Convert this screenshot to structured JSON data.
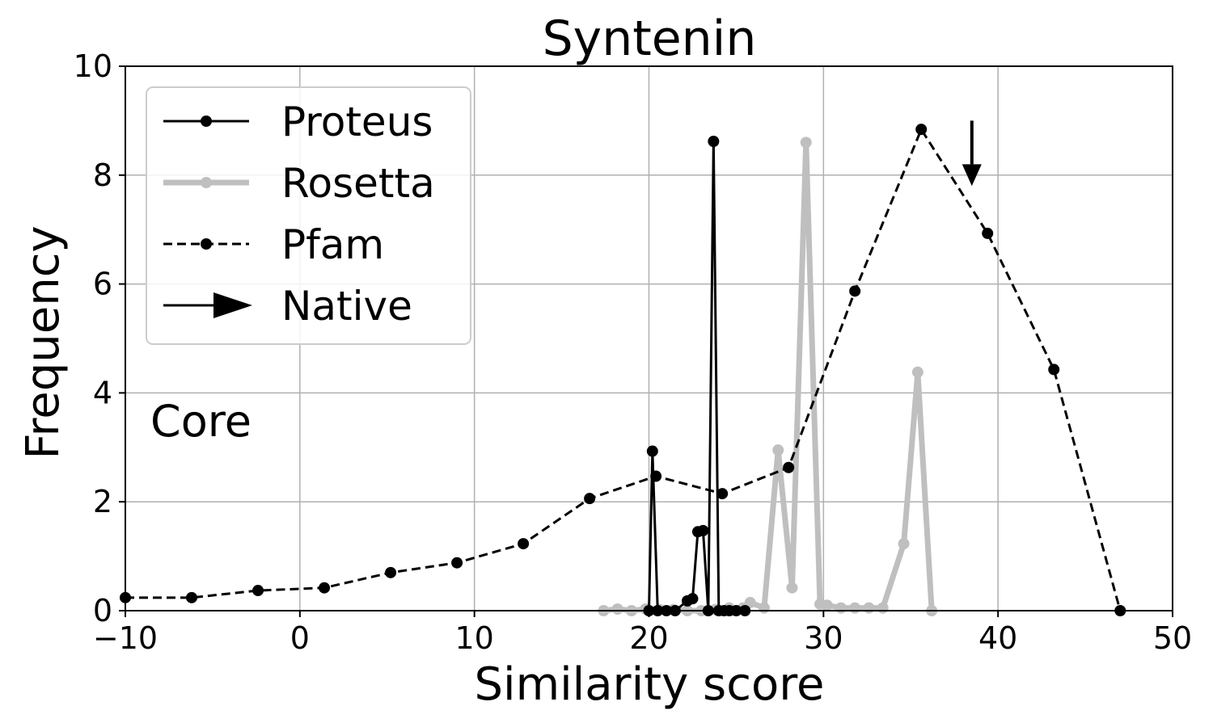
{
  "chart_data": {
    "type": "line",
    "title": "Syntenin",
    "xlabel": "Similarity score",
    "ylabel": "Frequency",
    "xlim": [
      -10,
      50
    ],
    "ylim": [
      0,
      10
    ],
    "x_ticks": [
      -10,
      0,
      10,
      20,
      30,
      40,
      50
    ],
    "x_tick_labels": [
      "−10",
      "0",
      "10",
      "20",
      "30",
      "40",
      "50"
    ],
    "y_ticks": [
      0,
      2,
      4,
      6,
      8,
      10
    ],
    "y_tick_labels": [
      "0",
      "2",
      "4",
      "6",
      "8",
      "10"
    ],
    "grid": true,
    "legend_position": "upper-left",
    "annotation": "Core",
    "native_label": "Native",
    "native_x": 38.5,
    "series": [
      {
        "name": "Proteus",
        "color": "#000000",
        "style": "solid",
        "x": [
          20.0,
          20.2,
          20.5,
          21.0,
          21.5,
          22.2,
          22.5,
          22.8,
          23.1,
          23.4,
          23.7,
          24.0,
          24.3,
          24.6,
          25.0,
          25.5
        ],
        "y": [
          0.0,
          2.93,
          0.0,
          0.0,
          0.0,
          0.18,
          0.22,
          1.45,
          1.47,
          0.0,
          8.62,
          0.0,
          0.0,
          0.0,
          0.0,
          0.0
        ]
      },
      {
        "name": "Rosetta",
        "color": "#bfbfbf",
        "style": "solid-thick",
        "x": [
          17.4,
          18.2,
          19.0,
          19.8,
          20.6,
          21.4,
          22.2,
          23.0,
          23.8,
          24.6,
          25.4,
          25.8,
          26.6,
          27.4,
          28.2,
          29.0,
          29.8,
          30.2,
          31.0,
          31.8,
          32.6,
          33.4,
          34.6,
          35.4,
          36.2
        ],
        "y": [
          0,
          0.03,
          0,
          0.03,
          0.02,
          0.02,
          0,
          0,
          0.02,
          0.05,
          0.05,
          0.15,
          0.05,
          2.95,
          0.42,
          8.6,
          0.12,
          0.1,
          0.05,
          0.05,
          0.05,
          0.05,
          1.23,
          4.38,
          0
        ]
      },
      {
        "name": "Pfam",
        "color": "#000000",
        "style": "dashed",
        "x": [
          -10.0,
          -6.2,
          -2.4,
          1.4,
          5.2,
          9.0,
          12.8,
          16.6,
          20.4,
          24.2,
          28.0,
          31.8,
          35.6,
          39.4,
          43.2,
          47.0
        ],
        "y": [
          0.24,
          0.24,
          0.37,
          0.42,
          0.7,
          0.88,
          1.23,
          2.06,
          2.47,
          2.15,
          2.63,
          5.87,
          8.84,
          6.93,
          4.43,
          0.0
        ]
      }
    ]
  }
}
